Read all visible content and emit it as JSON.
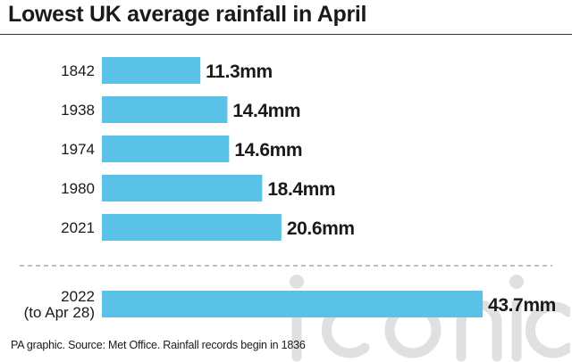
{
  "title": "Lowest UK average rainfall in April",
  "source": "PA graphic. Source: Met Office. Rainfall records begin in 1836",
  "watermark": "iconic",
  "colors": {
    "bar": "#5bc2e7",
    "text": "#1a1a1a",
    "divider": "#9a9a9a",
    "watermark": "#c8c8c8"
  },
  "chart_data": {
    "type": "bar",
    "orientation": "horizontal",
    "unit": "mm",
    "categories": [
      "1842",
      "1938",
      "1974",
      "1980",
      "2021",
      "2022 (to Apr 28)"
    ],
    "category_lines": [
      [
        "1842"
      ],
      [
        "1938"
      ],
      [
        "1974"
      ],
      [
        "1980"
      ],
      [
        "2021"
      ],
      [
        "2022",
        "(to Apr 28)"
      ]
    ],
    "values": [
      11.3,
      14.4,
      14.6,
      18.4,
      20.6,
      43.7
    ],
    "data_labels": [
      "11.3mm",
      "14.4mm",
      "14.6mm",
      "18.4mm",
      "20.6mm",
      "43.7mm"
    ],
    "separator_before_index": 5,
    "title": "Lowest UK average rainfall in April",
    "xlabel": "",
    "ylabel": "",
    "grid": false,
    "legend": "none"
  }
}
